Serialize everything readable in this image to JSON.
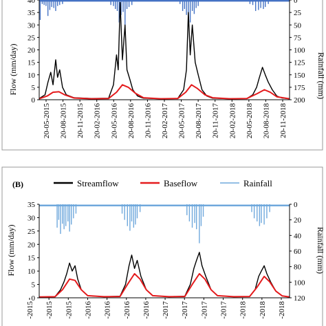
{
  "chart_data": [
    {
      "type": "line",
      "title": "",
      "xlabel": "",
      "ylabel_left": "Flow (mm/day)",
      "ylabel_right": "Rainfall (mm)",
      "y_ticks_left": [
        "0",
        "5",
        "10",
        "15",
        "20",
        "25",
        "30",
        "35",
        "40"
      ],
      "y_ticks_right": [
        "0",
        "25",
        "50",
        "75",
        "100",
        "125",
        "150",
        "175",
        "200"
      ],
      "ylim_left": [
        0,
        40
      ],
      "ylim_right_inverted": [
        0,
        200
      ],
      "x_tick_labels": [
        "20-05-2015",
        "20-08-2015",
        "20-11-2015",
        "20-02-2016",
        "20-05-2016",
        "20-08-2016",
        "20-11-2016",
        "20-02-2017",
        "20-05-2017",
        "20-08-2017",
        "20-11-2017",
        "20-02-2018",
        "20-05-2018",
        "20-08-2018",
        "20-11-2018"
      ],
      "x_range": [
        "2015-05-20",
        "2018-12-31"
      ],
      "series": [
        {
          "name": "Streamflow",
          "axis": "left",
          "color": "#000000",
          "style": "line",
          "points": [
            [
              "2015-05-20",
              0.5
            ],
            [
              "2015-06-20",
              2
            ],
            [
              "2015-07-05",
              7
            ],
            [
              "2015-07-20",
              11
            ],
            [
              "2015-08-01",
              6
            ],
            [
              "2015-08-15",
              16
            ],
            [
              "2015-08-25",
              9
            ],
            [
              "2015-09-05",
              12
            ],
            [
              "2015-09-20",
              5
            ],
            [
              "2015-10-10",
              2
            ],
            [
              "2015-11-20",
              0.8
            ],
            [
              "2016-02-20",
              0.5
            ],
            [
              "2016-05-20",
              0.6
            ],
            [
              "2016-06-15",
              6
            ],
            [
              "2016-07-01",
              18
            ],
            [
              "2016-07-10",
              12
            ],
            [
              "2016-07-20",
              39
            ],
            [
              "2016-08-01",
              16
            ],
            [
              "2016-08-15",
              30
            ],
            [
              "2016-08-25",
              12
            ],
            [
              "2016-09-10",
              8
            ],
            [
              "2016-09-25",
              4
            ],
            [
              "2016-10-20",
              1.5
            ],
            [
              "2016-11-20",
              0.6
            ],
            [
              "2017-02-20",
              0.4
            ],
            [
              "2017-05-20",
              0.5
            ],
            [
              "2017-06-20",
              4
            ],
            [
              "2017-07-05",
              12
            ],
            [
              "2017-07-15",
              35
            ],
            [
              "2017-07-25",
              18
            ],
            [
              "2017-08-05",
              30
            ],
            [
              "2017-08-20",
              15
            ],
            [
              "2017-09-05",
              10
            ],
            [
              "2017-09-25",
              4
            ],
            [
              "2017-10-20",
              1.5
            ],
            [
              "2017-11-20",
              0.6
            ],
            [
              "2018-02-20",
              0.4
            ],
            [
              "2018-05-20",
              0.5
            ],
            [
              "2018-06-20",
              2
            ],
            [
              "2018-07-10",
              5
            ],
            [
              "2018-07-25",
              9
            ],
            [
              "2018-08-10",
              13
            ],
            [
              "2018-08-25",
              10
            ],
            [
              "2018-09-10",
              7
            ],
            [
              "2018-10-01",
              4
            ],
            [
              "2018-10-25",
              1.5
            ],
            [
              "2018-11-20",
              0.7
            ],
            [
              "2018-12-31",
              0.4
            ]
          ]
        },
        {
          "name": "Baseflow",
          "axis": "left",
          "color": "#e41a1c",
          "style": "line",
          "points": [
            [
              "2015-05-20",
              0.4
            ],
            [
              "2015-07-01",
              1.5
            ],
            [
              "2015-08-01",
              3
            ],
            [
              "2015-09-01",
              3.2
            ],
            [
              "2015-10-01",
              2
            ],
            [
              "2015-11-20",
              0.7
            ],
            [
              "2016-02-20",
              0.4
            ],
            [
              "2016-05-20",
              0.5
            ],
            [
              "2016-07-01",
              3
            ],
            [
              "2016-08-01",
              6
            ],
            [
              "2016-09-01",
              5
            ],
            [
              "2016-10-10",
              2.5
            ],
            [
              "2016-11-20",
              0.8
            ],
            [
              "2017-02-20",
              0.4
            ],
            [
              "2017-05-20",
              0.5
            ],
            [
              "2017-07-01",
              3
            ],
            [
              "2017-08-01",
              6
            ],
            [
              "2017-09-01",
              4.5
            ],
            [
              "2017-10-10",
              2
            ],
            [
              "2017-11-20",
              0.8
            ],
            [
              "2018-02-20",
              0.4
            ],
            [
              "2018-05-20",
              0.5
            ],
            [
              "2018-07-15",
              2.5
            ],
            [
              "2018-08-20",
              4
            ],
            [
              "2018-09-20",
              3
            ],
            [
              "2018-10-25",
              1.2
            ],
            [
              "2018-12-31",
              0.4
            ]
          ]
        },
        {
          "name": "Rainfall",
          "axis": "right",
          "color": "#4472c4",
          "style": "bars",
          "points": [
            [
              "2015-05-25",
              40
            ],
            [
              "2015-06-05",
              8
            ],
            [
              "2015-06-15",
              10
            ],
            [
              "2015-06-25",
              12
            ],
            [
              "2015-07-05",
              32
            ],
            [
              "2015-07-15",
              20
            ],
            [
              "2015-07-25",
              14
            ],
            [
              "2015-08-05",
              16
            ],
            [
              "2015-08-15",
              22
            ],
            [
              "2015-08-25",
              12
            ],
            [
              "2015-09-05",
              10
            ],
            [
              "2015-09-20",
              8
            ],
            [
              "2016-06-01",
              10
            ],
            [
              "2016-06-15",
              12
            ],
            [
              "2016-06-25",
              18
            ],
            [
              "2016-07-05",
              22
            ],
            [
              "2016-07-15",
              45
            ],
            [
              "2016-07-25",
              30
            ],
            [
              "2016-08-05",
              24
            ],
            [
              "2016-08-15",
              55
            ],
            [
              "2016-08-25",
              18
            ],
            [
              "2016-09-05",
              14
            ],
            [
              "2016-09-20",
              10
            ],
            [
              "2017-06-01",
              8
            ],
            [
              "2017-06-15",
              22
            ],
            [
              "2017-06-25",
              18
            ],
            [
              "2017-07-05",
              30
            ],
            [
              "2017-07-15",
              34
            ],
            [
              "2017-07-25",
              45
            ],
            [
              "2017-08-05",
              22
            ],
            [
              "2017-08-15",
              28
            ],
            [
              "2017-08-25",
              16
            ],
            [
              "2017-09-05",
              12
            ],
            [
              "2018-06-05",
              8
            ],
            [
              "2018-06-20",
              10
            ],
            [
              "2018-07-05",
              22
            ],
            [
              "2018-07-20",
              20
            ],
            [
              "2018-08-01",
              16
            ],
            [
              "2018-08-15",
              18
            ],
            [
              "2018-08-25",
              14
            ],
            [
              "2018-09-10",
              8
            ]
          ]
        }
      ]
    },
    {
      "type": "line",
      "panel_label": "(B)",
      "title": "",
      "xlabel": "",
      "ylabel_left": "Flow (mm/day)",
      "ylabel_right": "Rainfall (mm)",
      "y_ticks_left": [
        "0",
        "5",
        "10",
        "15",
        "20",
        "25",
        "30",
        "35"
      ],
      "y_ticks_right": [
        "0",
        "20",
        "40",
        "60",
        "80",
        "100",
        "120"
      ],
      "ylim_left": [
        0,
        35
      ],
      "ylim_right_inverted": [
        0,
        120
      ],
      "x_tick_labels": [
        "-2015",
        "-2015",
        "-2015",
        "-2016",
        "-2016",
        "-2016",
        "-2016",
        "-2017",
        "-2017",
        "-2017",
        "-2017",
        "-2018",
        "-2018",
        "-2018"
      ],
      "x_range": [
        "2015-02-20",
        "2018-12-31"
      ],
      "legend": {
        "position": "top"
      },
      "series": [
        {
          "name": "Streamflow",
          "axis": "left",
          "color": "#000000",
          "style": "line",
          "points": [
            [
              "2015-02-20",
              0.3
            ],
            [
              "2015-05-20",
              0.4
            ],
            [
              "2015-06-20",
              3
            ],
            [
              "2015-07-10",
              6
            ],
            [
              "2015-07-25",
              9
            ],
            [
              "2015-08-10",
              13
            ],
            [
              "2015-08-25",
              10
            ],
            [
              "2015-09-10",
              12
            ],
            [
              "2015-09-25",
              7
            ],
            [
              "2015-10-15",
              3
            ],
            [
              "2015-11-20",
              0.8
            ],
            [
              "2016-02-20",
              0.4
            ],
            [
              "2016-05-20",
              0.6
            ],
            [
              "2016-06-20",
              5
            ],
            [
              "2016-07-10",
              12
            ],
            [
              "2016-07-25",
              16
            ],
            [
              "2016-08-10",
              11
            ],
            [
              "2016-08-25",
              14
            ],
            [
              "2016-09-15",
              8
            ],
            [
              "2016-10-15",
              3
            ],
            [
              "2016-11-20",
              0.8
            ],
            [
              "2017-02-20",
              0.4
            ],
            [
              "2017-05-20",
              0.6
            ],
            [
              "2017-06-20",
              5
            ],
            [
              "2017-07-10",
              11
            ],
            [
              "2017-07-25",
              14
            ],
            [
              "2017-08-10",
              17
            ],
            [
              "2017-08-25",
              12
            ],
            [
              "2017-09-15",
              8
            ],
            [
              "2017-10-15",
              3
            ],
            [
              "2017-11-20",
              0.8
            ],
            [
              "2018-02-20",
              0.4
            ],
            [
              "2018-05-20",
              0.5
            ],
            [
              "2018-06-20",
              3
            ],
            [
              "2018-07-10",
              8
            ],
            [
              "2018-07-25",
              10
            ],
            [
              "2018-08-10",
              12
            ],
            [
              "2018-08-25",
              9
            ],
            [
              "2018-09-15",
              6
            ],
            [
              "2018-10-15",
              2.5
            ],
            [
              "2018-11-20",
              0.7
            ],
            [
              "2018-12-31",
              0.3
            ]
          ]
        },
        {
          "name": "Baseflow",
          "axis": "left",
          "color": "#e41a1c",
          "style": "line",
          "points": [
            [
              "2015-02-20",
              0.3
            ],
            [
              "2015-05-20",
              0.4
            ],
            [
              "2015-07-01",
              3
            ],
            [
              "2015-08-10",
              7
            ],
            [
              "2015-09-10",
              6.5
            ],
            [
              "2015-10-15",
              3
            ],
            [
              "2015-11-20",
              0.8
            ],
            [
              "2016-02-20",
              0.4
            ],
            [
              "2016-05-20",
              0.5
            ],
            [
              "2016-07-01",
              5
            ],
            [
              "2016-08-10",
              9
            ],
            [
              "2016-09-10",
              7
            ],
            [
              "2016-10-15",
              3
            ],
            [
              "2016-11-20",
              0.8
            ],
            [
              "2017-02-20",
              0.4
            ],
            [
              "2017-05-20",
              0.5
            ],
            [
              "2017-07-01",
              5
            ],
            [
              "2017-08-10",
              9
            ],
            [
              "2017-09-10",
              7
            ],
            [
              "2017-10-15",
              3
            ],
            [
              "2017-11-20",
              0.8
            ],
            [
              "2018-02-20",
              0.4
            ],
            [
              "2018-05-20",
              0.5
            ],
            [
              "2018-07-01",
              4
            ],
            [
              "2018-08-10",
              8
            ],
            [
              "2018-09-10",
              6
            ],
            [
              "2018-10-15",
              2.5
            ],
            [
              "2018-11-20",
              0.7
            ],
            [
              "2018-12-31",
              0.3
            ]
          ]
        },
        {
          "name": "Rainfall",
          "axis": "right",
          "color": "#6fa8dc",
          "style": "bars",
          "points": [
            [
              "2015-06-01",
              30
            ],
            [
              "2015-06-10",
              20
            ],
            [
              "2015-06-20",
              38
            ],
            [
              "2015-07-01",
              25
            ],
            [
              "2015-07-10",
              32
            ],
            [
              "2015-07-20",
              28
            ],
            [
              "2015-08-01",
              22
            ],
            [
              "2015-08-10",
              35
            ],
            [
              "2015-08-20",
              26
            ],
            [
              "2015-09-01",
              18
            ],
            [
              "2015-09-15",
              12
            ],
            [
              "2016-06-01",
              12
            ],
            [
              "2016-06-15",
              20
            ],
            [
              "2016-07-01",
              28
            ],
            [
              "2016-07-15",
              34
            ],
            [
              "2016-07-25",
              22
            ],
            [
              "2016-08-05",
              30
            ],
            [
              "2016-08-15",
              26
            ],
            [
              "2016-08-25",
              18
            ],
            [
              "2016-09-10",
              10
            ],
            [
              "2017-06-01",
              14
            ],
            [
              "2017-06-15",
              22
            ],
            [
              "2017-07-01",
              30
            ],
            [
              "2017-07-15",
              24
            ],
            [
              "2017-07-25",
              32
            ],
            [
              "2017-08-10",
              50
            ],
            [
              "2017-08-20",
              28
            ],
            [
              "2017-09-01",
              16
            ],
            [
              "2018-06-01",
              10
            ],
            [
              "2018-06-15",
              18
            ],
            [
              "2018-07-01",
              22
            ],
            [
              "2018-07-15",
              28
            ],
            [
              "2018-07-25",
              24
            ],
            [
              "2018-08-10",
              26
            ],
            [
              "2018-08-25",
              18
            ],
            [
              "2018-09-10",
              10
            ]
          ]
        }
      ]
    }
  ]
}
